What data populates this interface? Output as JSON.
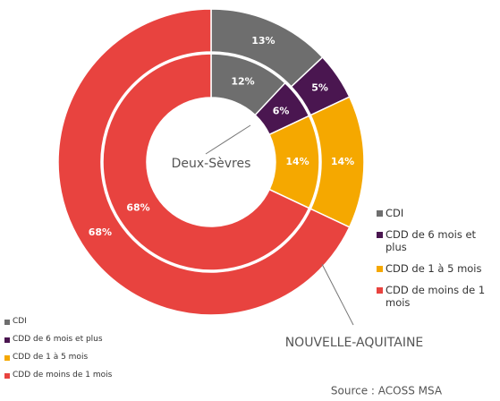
{
  "chart_data": {
    "type": "donut",
    "categories": [
      "CDI",
      "CDD de 6 mois et plus",
      "CDD de 1 à 5 mois",
      "CDD de moins de 1 mois"
    ],
    "colors": [
      "#6e6e6e",
      "#4a1650",
      "#f5a800",
      "#e8433f"
    ],
    "series": [
      {
        "name": "Deux-Sèvres",
        "values": [
          12,
          6,
          14,
          68
        ],
        "value_labels": [
          "12%",
          "6%",
          "14%",
          "68%"
        ]
      },
      {
        "name": "NOUVELLE-AQUITAINE",
        "values": [
          13,
          5,
          14,
          68
        ],
        "value_labels": [
          "13%",
          "5%",
          "14%",
          "68%"
        ]
      }
    ],
    "source": "Source : ACOSS MSA"
  }
}
